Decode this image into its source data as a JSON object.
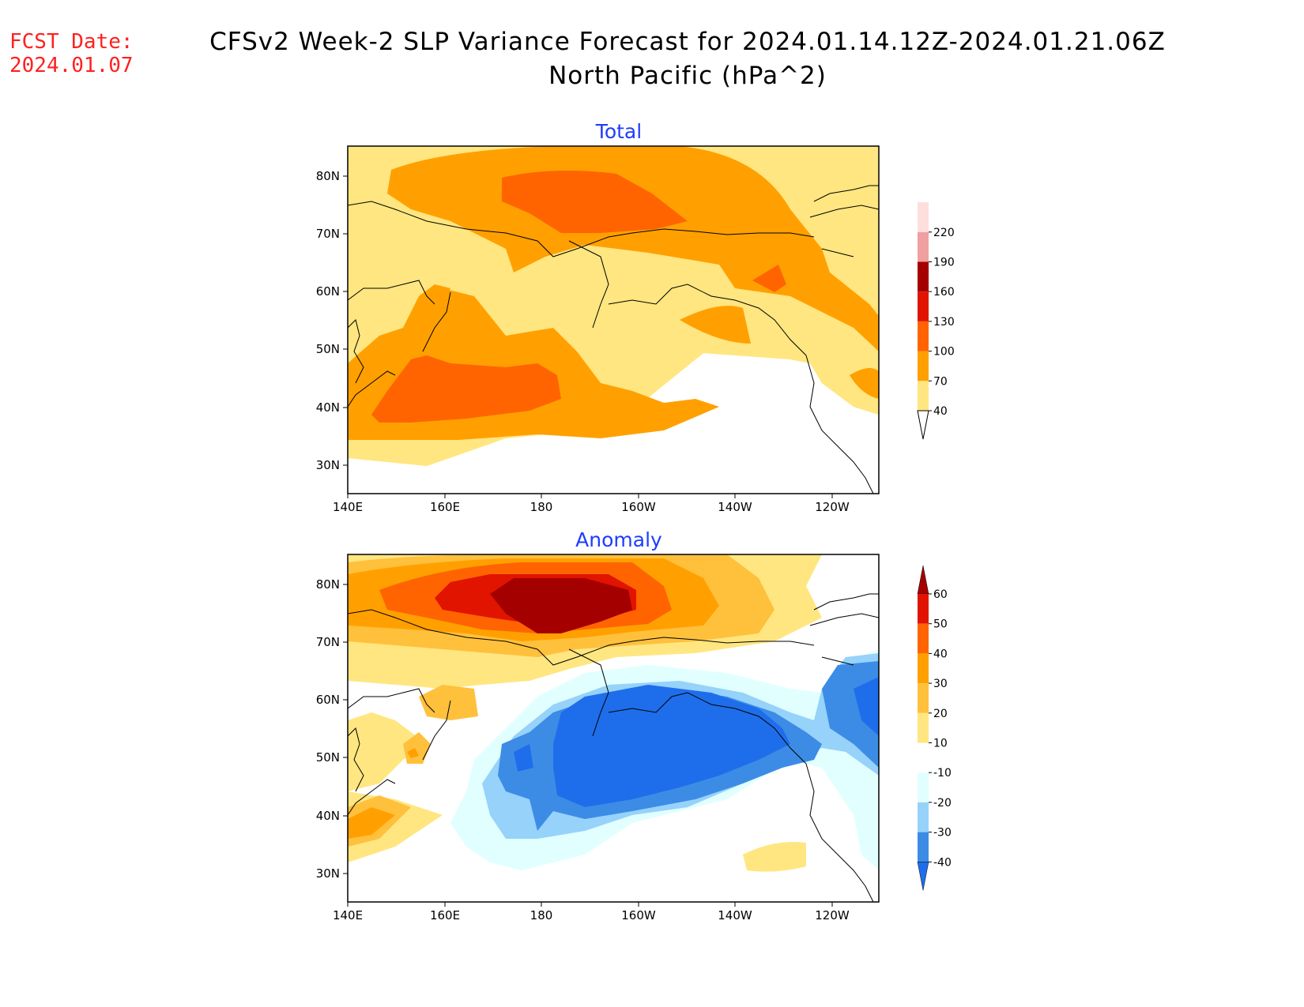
{
  "header": {
    "fcst_label": "FCST Date:",
    "fcst_date": "2024.01.07",
    "title_line1": "CFSv2 Week-2 SLP Variance Forecast for 2024.01.14.12Z-2024.01.21.06Z",
    "title_line2": "North Pacific (hPa^2)"
  },
  "map_axes": {
    "lon_ticks": [
      "140E",
      "160E",
      "180",
      "160W",
      "140W",
      "120W"
    ],
    "lat_ticks": [
      "80N",
      "70N",
      "60N",
      "50N",
      "40N",
      "30N"
    ]
  },
  "panels": [
    {
      "title": "Total",
      "colorbar": {
        "levels": [
          "40",
          "70",
          "100",
          "130",
          "160",
          "190",
          "220"
        ],
        "colors": [
          "#ffe680",
          "#ffa000",
          "#ff6400",
          "#e11400",
          "#a50000",
          "#f0a0a0",
          "#ffdede"
        ]
      }
    },
    {
      "title": "Anomaly",
      "colorbar": {
        "levels": [
          "60",
          "50",
          "40",
          "30",
          "20",
          "10",
          "-10",
          "-20",
          "-30",
          "-40"
        ],
        "colors": [
          "#a50000",
          "#e11400",
          "#ff6400",
          "#ffa000",
          "#ffc03c",
          "#ffe680",
          "#ffffff",
          "#e1ffff",
          "#96d2fa",
          "#3c8ce6",
          "#1e6eeb"
        ]
      }
    }
  ],
  "colors": {
    "fcst": "#ff2020",
    "panel_title": "#1e3cff",
    "coastline": "#000000"
  }
}
